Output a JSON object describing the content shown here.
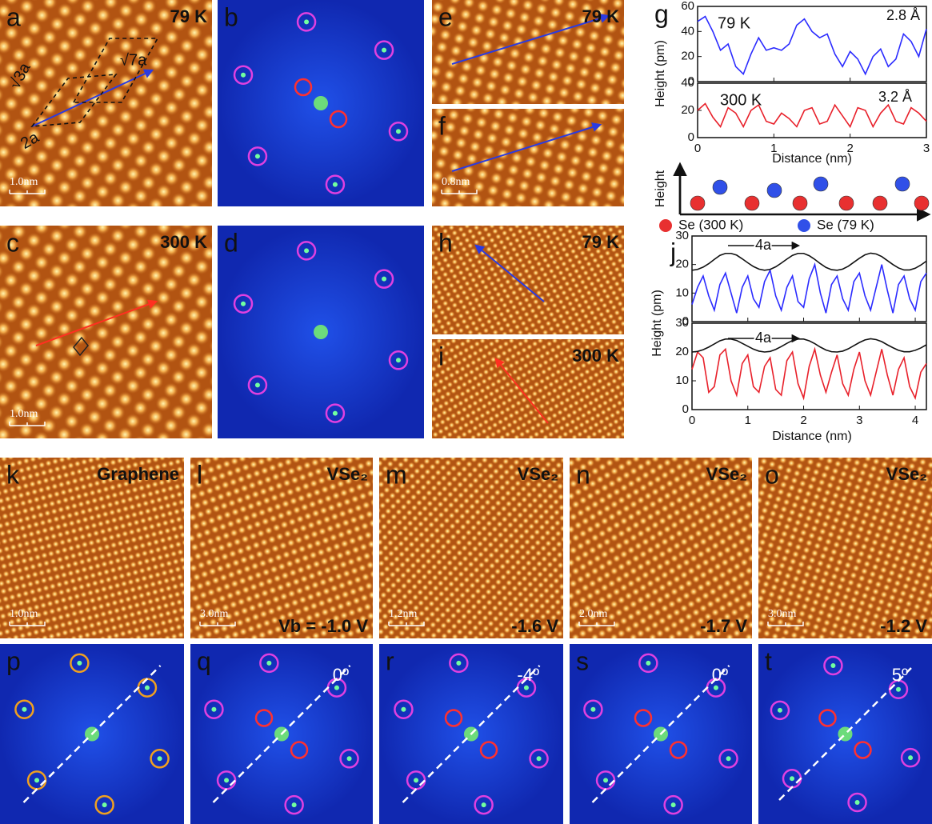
{
  "panels": [
    {
      "label": "a",
      "kind": "stm",
      "note": "79 K",
      "scale": "1.0nm",
      "texts": [
        "√3a",
        "√7a",
        "2a"
      ]
    },
    {
      "label": "b",
      "kind": "fft",
      "ring": "#e040e0"
    },
    {
      "label": "e",
      "kind": "stm",
      "note": "79 K"
    },
    {
      "label": "f",
      "kind": "stm",
      "scale": "0.8nm"
    },
    {
      "label": "c",
      "kind": "stm",
      "note": "300 K",
      "scale": "1.0nm"
    },
    {
      "label": "d",
      "kind": "fft",
      "ring": "#e040e0"
    },
    {
      "label": "h",
      "kind": "stm",
      "note": "79 K"
    },
    {
      "label": "i",
      "kind": "stm",
      "note": "300 K"
    },
    {
      "label": "k",
      "kind": "stm",
      "note": "Graphene",
      "scale": "1.0nm"
    },
    {
      "label": "l",
      "kind": "stm",
      "note": "VSe₂",
      "scale": "3.0nm",
      "bias": "Vb = -1.0 V"
    },
    {
      "label": "m",
      "kind": "stm",
      "note": "VSe₂",
      "scale": "1.2nm",
      "bias": "-1.6 V"
    },
    {
      "label": "n",
      "kind": "stm",
      "note": "VSe₂",
      "scale": "2.0nm",
      "bias": "-1.7 V"
    },
    {
      "label": "o",
      "kind": "stm",
      "note": "VSe₂",
      "scale": "3.0nm",
      "bias": "-1.2 V"
    },
    {
      "label": "p",
      "kind": "fft",
      "ring": "#f0a020"
    },
    {
      "label": "q",
      "kind": "fft",
      "ring": "#e040e0",
      "angle": "0º"
    },
    {
      "label": "r",
      "kind": "fft",
      "ring": "#e040e0",
      "angle": "-4º"
    },
    {
      "label": "s",
      "kind": "fft",
      "ring": "#e040e0",
      "angle": "0º"
    },
    {
      "label": "t",
      "kind": "fft",
      "ring": "#e040e0",
      "angle": "5º"
    }
  ],
  "g": {
    "label": "g",
    "ylabel": "Height (pm)",
    "xlabel": "Distance (nm)",
    "xlim": [
      0,
      3
    ],
    "xticks": [
      0,
      1,
      2,
      3
    ],
    "x": [
      0,
      0.1,
      0.2,
      0.3,
      0.4,
      0.5,
      0.6,
      0.7,
      0.8,
      0.9,
      1,
      1.1,
      1.2,
      1.3,
      1.4,
      1.5,
      1.6,
      1.7,
      1.8,
      1.9,
      2,
      2.1,
      2.2,
      2.3,
      2.4,
      2.5,
      2.6,
      2.7,
      2.8,
      2.9,
      3
    ],
    "top": {
      "note": "79 K",
      "annotation": "2.8 Å",
      "color": "#2b2bff",
      "ylim": [
        0,
        60
      ],
      "yticks": [
        0,
        20,
        40,
        60
      ],
      "values": [
        48,
        52,
        40,
        25,
        30,
        12,
        6,
        22,
        35,
        25,
        27,
        25,
        30,
        45,
        50,
        40,
        35,
        38,
        22,
        12,
        24,
        18,
        6,
        20,
        26,
        12,
        18,
        38,
        32,
        20,
        42
      ]
    },
    "bottom": {
      "note": "300 K",
      "annotation": "3.2 Å",
      "color": "#e8202a",
      "ylim": [
        0,
        40
      ],
      "yticks": [
        0,
        20,
        40
      ],
      "values": [
        20,
        25,
        15,
        8,
        22,
        18,
        8,
        20,
        24,
        12,
        10,
        18,
        14,
        8,
        20,
        22,
        10,
        12,
        24,
        16,
        8,
        22,
        20,
        8,
        18,
        24,
        12,
        10,
        22,
        18,
        12
      ]
    }
  },
  "schematic": {
    "axis_label": "Height",
    "legend": [
      {
        "name": "Se (300 K)",
        "color": "#e83030"
      },
      {
        "name": "Se (79 K)",
        "color": "#3050e8"
      }
    ]
  },
  "j": {
    "label": "j",
    "ylabel": "Height (pm)",
    "xlabel": "Distance (nm)",
    "xlim": [
      0,
      4.2
    ],
    "xticks": [
      0,
      1,
      2,
      3,
      4
    ],
    "x": [
      0,
      0.1,
      0.2,
      0.3,
      0.4,
      0.5,
      0.6,
      0.7,
      0.8,
      0.9,
      1,
      1.1,
      1.2,
      1.3,
      1.4,
      1.5,
      1.6,
      1.7,
      1.8,
      1.9,
      2,
      2.1,
      2.2,
      2.3,
      2.4,
      2.5,
      2.6,
      2.7,
      2.8,
      2.9,
      3,
      3.1,
      3.2,
      3.3,
      3.4,
      3.5,
      3.6,
      3.7,
      3.8,
      3.9,
      4,
      4.1,
      4.2
    ],
    "top": {
      "annotation": "4a",
      "ylim": [
        0,
        30
      ],
      "yticks": [
        0,
        10,
        20,
        30
      ],
      "series": [
        {
          "color": "#2b2bff",
          "values": [
            6,
            12,
            16,
            9,
            4,
            13,
            17,
            10,
            3,
            12,
            16,
            8,
            5,
            14,
            18,
            9,
            4,
            12,
            16,
            7,
            5,
            15,
            20,
            10,
            3,
            13,
            16,
            8,
            4,
            14,
            17,
            9,
            4,
            12,
            20,
            11,
            3,
            13,
            16,
            8,
            4,
            14,
            17
          ]
        },
        {
          "color": "#111111",
          "values": [
            18,
            18.3,
            19.1,
            20.3,
            21.8,
            23.2,
            23.9,
            23.9,
            23.3,
            22,
            20.6,
            19.3,
            18.4,
            18,
            18.3,
            19.2,
            20.5,
            21.9,
            23.2,
            23.9,
            23.9,
            23.1,
            21.8,
            20.3,
            19,
            18.2,
            18,
            18.4,
            19.4,
            20.8,
            22.2,
            23.4,
            24,
            23.7,
            22.8,
            21.4,
            20,
            18.8,
            18.1,
            18.1,
            18.7,
            19.8,
            21.2
          ]
        }
      ]
    },
    "bottom": {
      "annotation": "4a",
      "ylim": [
        0,
        30
      ],
      "yticks": [
        0,
        10,
        20,
        30
      ],
      "series": [
        {
          "color": "#e8202a",
          "values": [
            14,
            20,
            18,
            6,
            8,
            19,
            21,
            10,
            5,
            16,
            19,
            8,
            6,
            15,
            18,
            7,
            5,
            17,
            20,
            9,
            4,
            15,
            21,
            12,
            6,
            13,
            19,
            9,
            5,
            14,
            20,
            10,
            5,
            13,
            21,
            12,
            5,
            14,
            18,
            8,
            4,
            13,
            16
          ]
        },
        {
          "color": "#111111",
          "values": [
            20,
            20.2,
            20.8,
            21.7,
            22.8,
            23.9,
            24.5,
            24.5,
            24,
            23,
            22,
            21,
            20.3,
            20,
            20.2,
            20.9,
            21.9,
            23,
            24,
            24.5,
            24.5,
            23.9,
            22.9,
            21.7,
            20.7,
            20.1,
            20,
            20.3,
            21.1,
            22.2,
            23.3,
            24.2,
            24.6,
            24.3,
            23.6,
            22.5,
            21.5,
            20.6,
            20.1,
            20.1,
            20.6,
            21.4,
            22.5
          ]
        }
      ]
    }
  }
}
